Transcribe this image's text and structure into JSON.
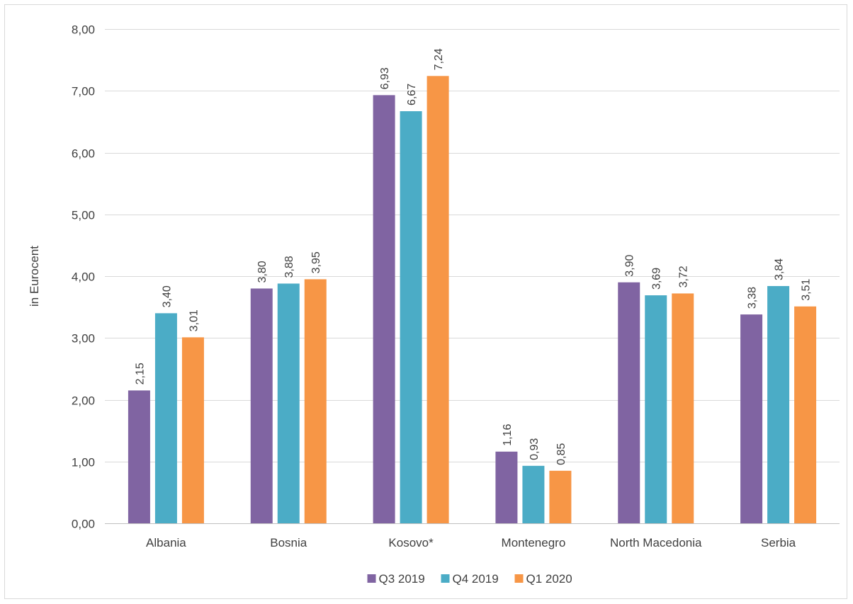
{
  "chart_data": {
    "type": "bar",
    "title": "",
    "xlabel": "",
    "ylabel": "in Eurocent",
    "ylim": [
      0,
      8
    ],
    "ytick_values": [
      0,
      1,
      2,
      3,
      4,
      5,
      6,
      7,
      8
    ],
    "ytick_labels": [
      "0,00",
      "1,00",
      "2,00",
      "3,00",
      "4,00",
      "5,00",
      "6,00",
      "7,00",
      "8,00"
    ],
    "grid": true,
    "legend_position": "bottom",
    "categories": [
      "Albania",
      "Bosnia",
      "Kosovo*",
      "Montenegro",
      "North Macedonia",
      "Serbia"
    ],
    "series": [
      {
        "name": "Q3 2019",
        "color": "#8064a2",
        "values": [
          2.15,
          3.8,
          6.93,
          1.16,
          3.9,
          3.38
        ],
        "labels": [
          "2,15",
          "3,80",
          "6,93",
          "1,16",
          "3,90",
          "3,38"
        ]
      },
      {
        "name": "Q4 2019",
        "color": "#4bacc6",
        "values": [
          3.4,
          3.88,
          6.67,
          0.93,
          3.69,
          3.84
        ],
        "labels": [
          "3,40",
          "3,88",
          "6,67",
          "0,93",
          "3,69",
          "3,84"
        ]
      },
      {
        "name": "Q1 2020",
        "color": "#f79646",
        "values": [
          3.01,
          3.95,
          7.24,
          0.85,
          3.72,
          3.51
        ],
        "labels": [
          "3,01",
          "3,95",
          "7,24",
          "0,85",
          "3,72",
          "3,51"
        ]
      }
    ]
  }
}
